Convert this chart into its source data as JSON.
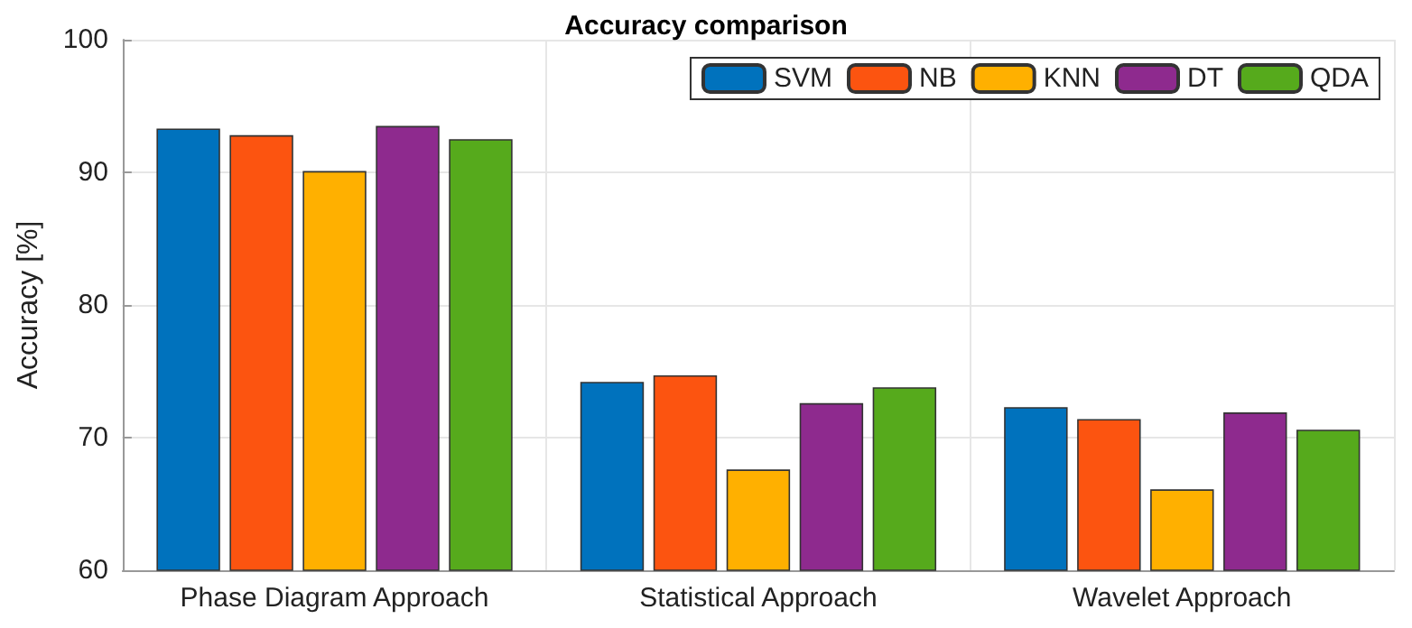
{
  "chart_data": {
    "type": "bar",
    "title": "Accuracy comparison",
    "ylabel": "Accuracy [%]",
    "categories": [
      "Phase Diagram Approach",
      "Statistical Approach",
      "Wavelet Approach"
    ],
    "series": [
      {
        "name": "SVM",
        "color": "#0072bd",
        "values": [
          93.3,
          74.2,
          72.3
        ]
      },
      {
        "name": "NB",
        "color": "#fc5410",
        "values": [
          92.8,
          74.7,
          71.4
        ]
      },
      {
        "name": "KNN",
        "color": "#ffb000",
        "values": [
          90.1,
          67.6,
          66.1
        ]
      },
      {
        "name": "DT",
        "color": "#8e2a8e",
        "values": [
          93.5,
          72.6,
          71.9
        ]
      },
      {
        "name": "QDA",
        "color": "#56aa1c",
        "values": [
          92.5,
          73.8,
          70.6
        ]
      }
    ],
    "ylim": [
      60,
      100
    ],
    "yticks": [
      60,
      70,
      80,
      90,
      100
    ],
    "grid": true,
    "legend": "top right"
  }
}
